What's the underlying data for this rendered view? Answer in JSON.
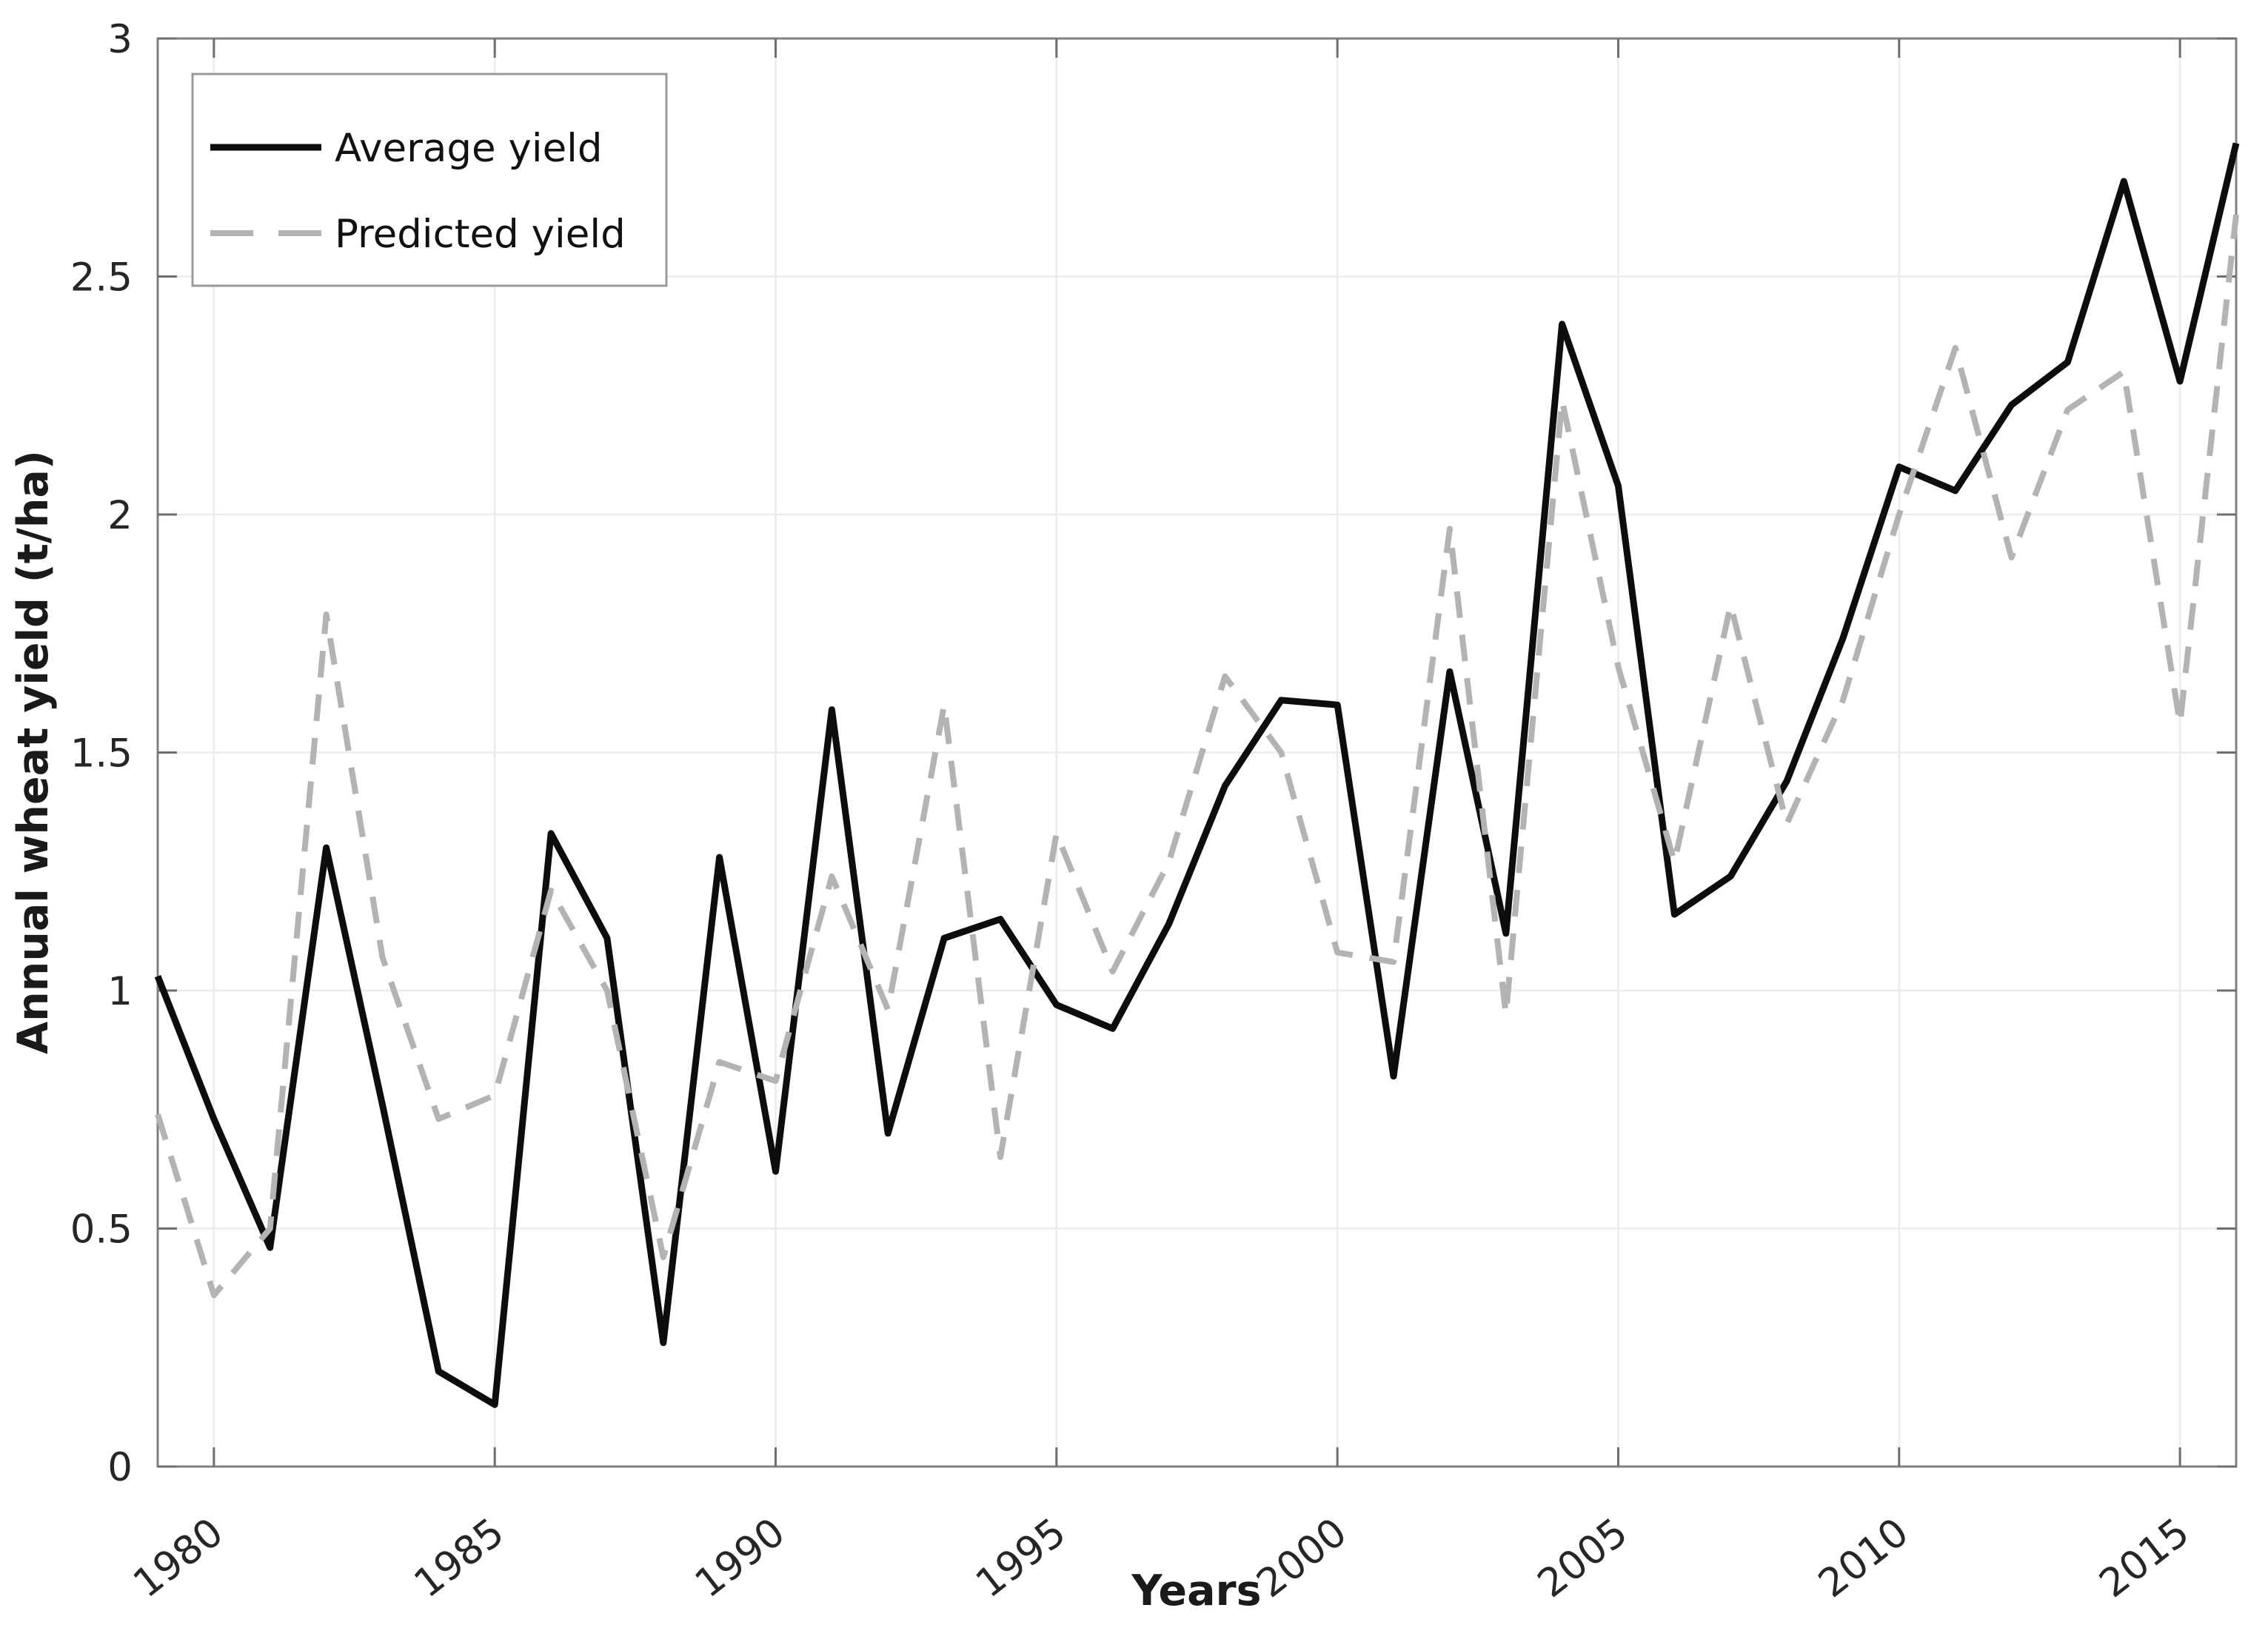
{
  "window": {
    "background": "#ffffff"
  },
  "chart_data": {
    "type": "line",
    "title": "",
    "xlabel": "Years",
    "ylabel": "Annual wheat yield (t/ha)",
    "x": [
      1979,
      1980,
      1981,
      1982,
      1983,
      1984,
      1985,
      1986,
      1987,
      1988,
      1989,
      1990,
      1991,
      1992,
      1993,
      1994,
      1995,
      1996,
      1997,
      1998,
      1999,
      2000,
      2001,
      2002,
      2003,
      2004,
      2005,
      2006,
      2007,
      2008,
      2009,
      2010,
      2011,
      2012,
      2013,
      2014,
      2015,
      2016
    ],
    "series": [
      {
        "name": "Average yield",
        "style": "solid",
        "color": "#0d0d0d",
        "values": [
          1.03,
          0.73,
          0.46,
          1.3,
          0.76,
          0.2,
          0.13,
          1.33,
          1.11,
          0.26,
          1.28,
          0.62,
          1.59,
          0.7,
          1.11,
          1.15,
          0.97,
          0.92,
          1.14,
          1.43,
          1.61,
          1.6,
          0.82,
          1.67,
          1.12,
          2.4,
          2.06,
          1.16,
          1.24,
          1.44,
          1.74,
          2.1,
          2.05,
          2.23,
          2.32,
          2.7,
          2.28,
          2.78
        ]
      },
      {
        "name": "Predicted yield",
        "style": "dashed",
        "color": "#b3b3b3",
        "values": [
          0.74,
          0.36,
          0.5,
          1.79,
          1.07,
          0.73,
          0.78,
          1.21,
          1.0,
          0.44,
          0.85,
          0.81,
          1.24,
          0.96,
          1.6,
          0.65,
          1.33,
          1.04,
          1.27,
          1.66,
          1.5,
          1.08,
          1.06,
          1.97,
          0.95,
          2.24,
          1.68,
          1.27,
          1.81,
          1.35,
          1.61,
          2.0,
          2.35,
          1.91,
          2.22,
          2.3,
          1.56,
          2.63
        ]
      }
    ],
    "xlim": [
      1979,
      2016
    ],
    "ylim": [
      0,
      3
    ],
    "xticks": [
      1980,
      1985,
      1990,
      1995,
      2000,
      2005,
      2010,
      2015
    ],
    "xtick_labels": [
      "1980",
      "1985",
      "1990",
      "1995",
      "2000",
      "2005",
      "2010",
      "2015"
    ],
    "yticks": [
      0,
      0.5,
      1,
      1.5,
      2,
      2.5,
      3
    ],
    "ytick_labels": [
      "0",
      "0.5",
      "1",
      "1.5",
      "2",
      "2.5",
      "3"
    ],
    "grid": true,
    "legend_position": "top-left",
    "legend": {
      "entries": [
        "Average yield",
        "Predicted yield"
      ]
    },
    "style": {
      "grid_color": "#ebebeb",
      "box_color": "#808080",
      "tick_color": "#6e6e6e",
      "tick_label_color": "#262626",
      "solid_line_color": "#0d0d0d",
      "dashed_line_color": "#b3b3b3",
      "legend_border_color": "#999999",
      "legend_background": "#ffffff"
    }
  }
}
